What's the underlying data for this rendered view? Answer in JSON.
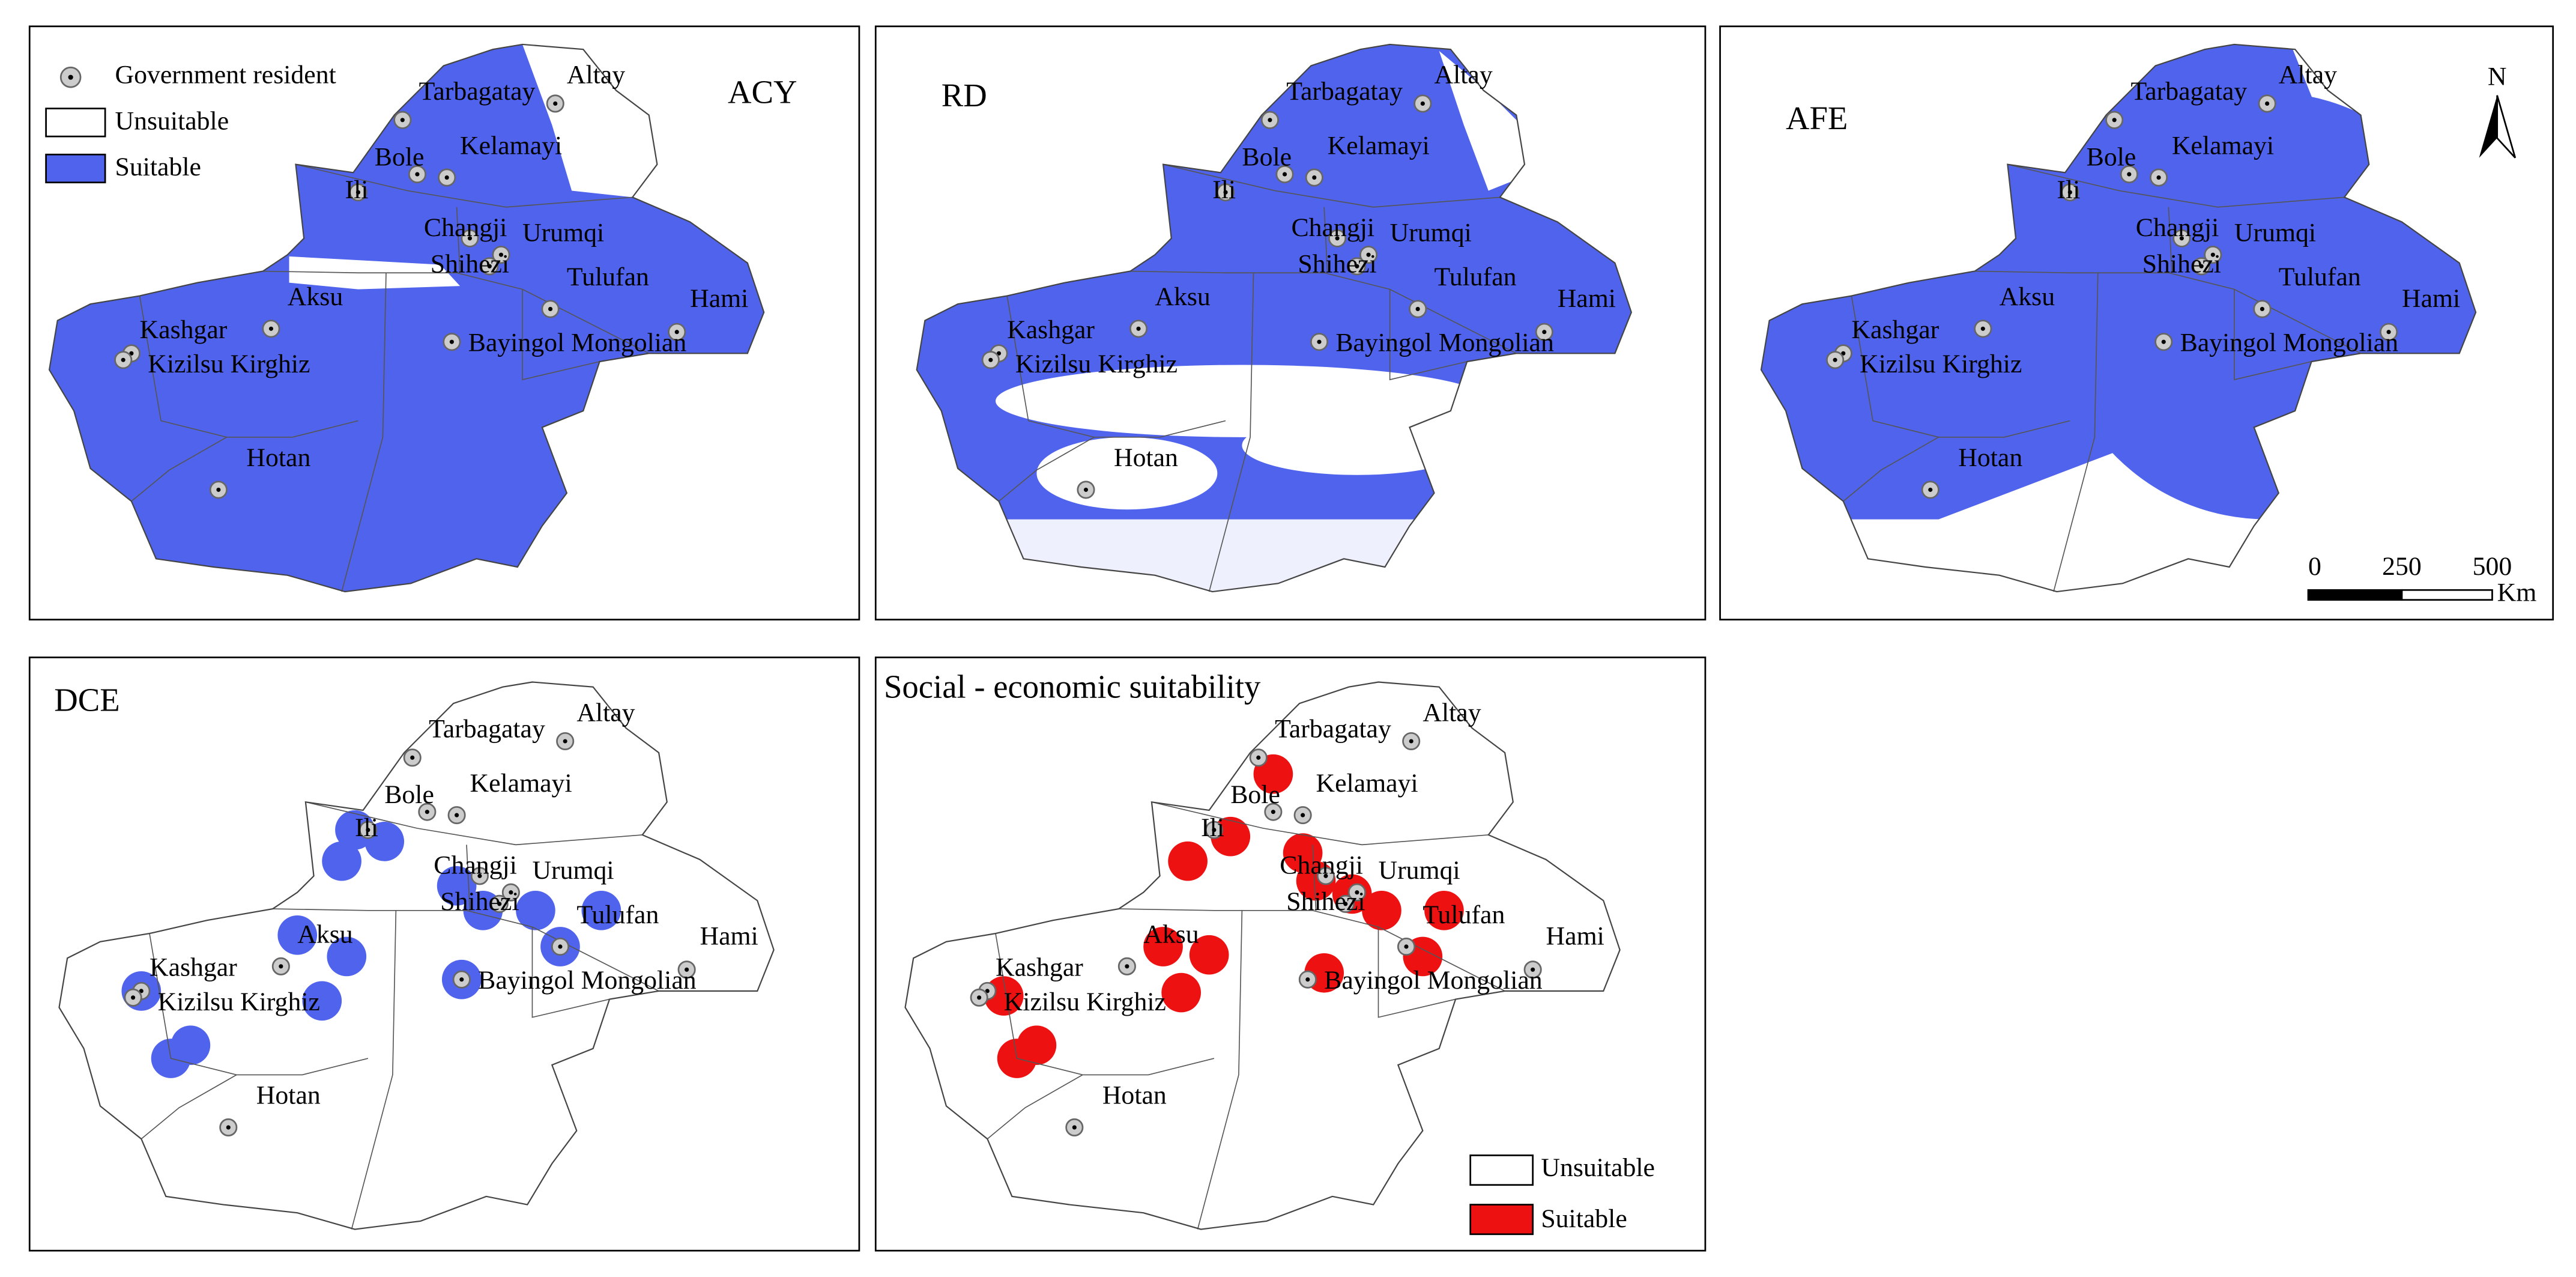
{
  "panels": [
    {
      "title": "ACY"
    },
    {
      "title": "RD"
    },
    {
      "title": "AFE"
    },
    {
      "title": "DCE"
    },
    {
      "title": "Social - economic suitability"
    }
  ],
  "cities": [
    "Altay",
    "Tarbagatay",
    "Bole",
    "Kelamayi",
    "Ili",
    "Changji",
    "Urumqi",
    "Shihezi",
    "Tulufan",
    "Hami",
    "Aksu",
    "Kashgar",
    "Kizilsu Kirghiz",
    "Bayingol Mongolian",
    "Hotan"
  ],
  "legend": {
    "government_resident": "Government resident",
    "unsuitable": "Unsuitable",
    "suitable": "Suitable"
  },
  "north": "N",
  "scale_bar": {
    "labels": [
      "0",
      "250",
      "500"
    ],
    "unit": "Km"
  }
}
